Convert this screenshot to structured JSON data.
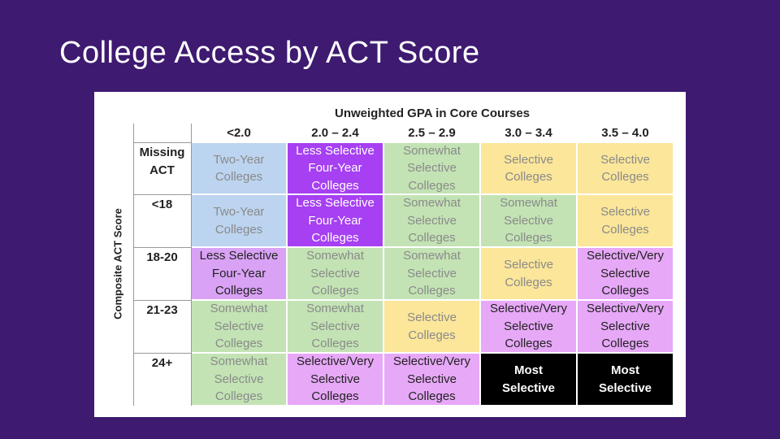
{
  "slide": {
    "title": "College Access by ACT Score"
  },
  "table": {
    "title": "Unweighted GPA in Core Courses",
    "row_axis_label": "Composite ACT Score",
    "columns": [
      "<2.0",
      "2.0 – 2.4",
      "2.5 – 2.9",
      "3.0 – 3.4",
      "3.5 – 4.0"
    ],
    "rows": [
      {
        "label": "Missing ACT",
        "cells": [
          {
            "text": "Two-Year Colleges",
            "fill": "#bcd4ef"
          },
          {
            "text": "Less Selective Four-Year Colleges",
            "fill": "#a640f2"
          },
          {
            "text": "Somewhat Selective Colleges",
            "fill": "#c3e3b4"
          },
          {
            "text": "Selective Colleges",
            "fill": "#fbe69a"
          },
          {
            "text": "Selective Colleges",
            "fill": "#fbe69a"
          }
        ]
      },
      {
        "label": "<18",
        "cells": [
          {
            "text": "Two-Year Colleges",
            "fill": "#bcd4ef"
          },
          {
            "text": "Less Selective Four-Year Colleges",
            "fill": "#a640f2"
          },
          {
            "text": "Somewhat Selective Colleges",
            "fill": "#c3e3b4"
          },
          {
            "text": "Somewhat Selective Colleges",
            "fill": "#c3e3b4"
          },
          {
            "text": "Selective Colleges",
            "fill": "#fbe69a"
          }
        ]
      },
      {
        "label": "18-20",
        "cells": [
          {
            "text": "Less Selective Four-Year Colleges",
            "fill": "#d9a2f5"
          },
          {
            "text": "Somewhat Selective Colleges",
            "fill": "#c3e3b4"
          },
          {
            "text": "Somewhat Selective Colleges",
            "fill": "#c3e3b4"
          },
          {
            "text": "Selective Colleges",
            "fill": "#fbe69a"
          },
          {
            "text": "Selective/Very Selective Colleges",
            "fill": "#e7a8f7"
          }
        ]
      },
      {
        "label": "21-23",
        "cells": [
          {
            "text": "Somewhat Selective Colleges",
            "fill": "#c3e3b4"
          },
          {
            "text": "Somewhat Selective Colleges",
            "fill": "#c3e3b4"
          },
          {
            "text": "Selective Colleges",
            "fill": "#fbe69a"
          },
          {
            "text": "Selective/Very Selective Colleges",
            "fill": "#e7a8f7"
          },
          {
            "text": "Selective/Very Selective Colleges",
            "fill": "#e7a8f7"
          }
        ]
      },
      {
        "label": "24+",
        "cells": [
          {
            "text": "Somewhat Selective Colleges",
            "fill": "#c3e3b4"
          },
          {
            "text": "Selective/Very Selective Colleges",
            "fill": "#e7a8f7"
          },
          {
            "text": "Selective/Very Selective Colleges",
            "fill": "#e7a8f7"
          },
          {
            "text": "Most Selective",
            "fill": "#000000"
          },
          {
            "text": "Most Selective",
            "fill": "#000000"
          }
        ]
      }
    ]
  }
}
